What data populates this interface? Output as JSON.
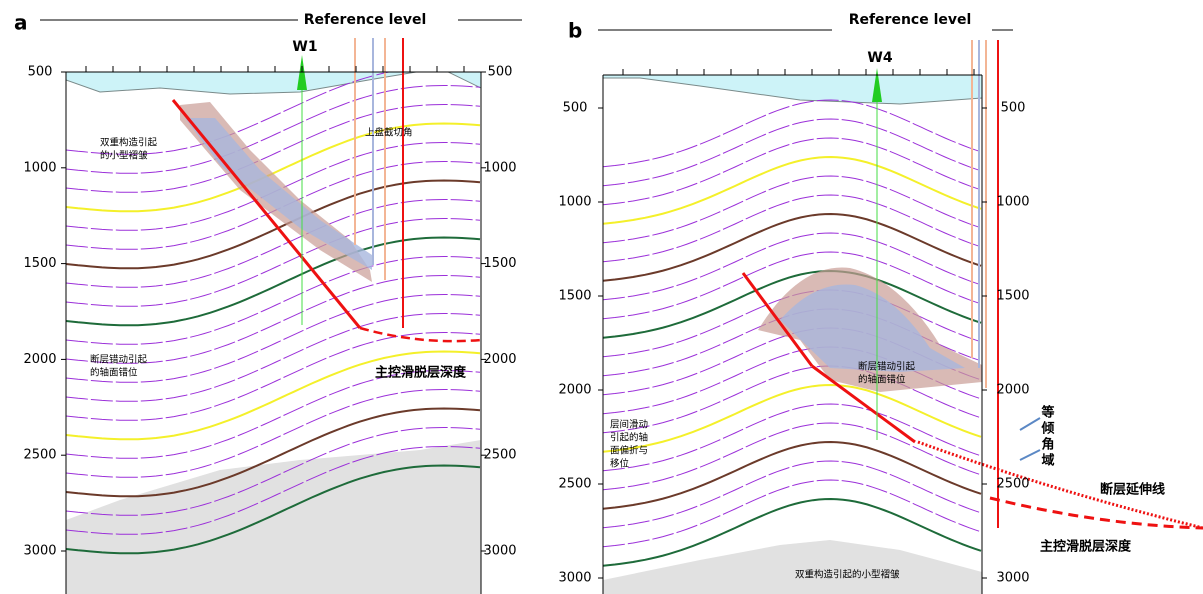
{
  "panels": [
    {
      "label": "a",
      "reference": "Reference level",
      "well": "W1",
      "depth_ticks": [
        500,
        1000,
        1500,
        2000,
        2500,
        3000
      ],
      "notes": [
        [
          "双重构造引起",
          "的小型褶皱"
        ],
        [
          "上盘截切角"
        ],
        [
          "断层错动引起",
          "的轴面错位"
        ]
      ],
      "key_label": "主控滑脱层深度"
    },
    {
      "label": "b",
      "reference": "Reference level",
      "well": "W4",
      "depth_ticks": [
        500,
        1000,
        1500,
        2000,
        2500,
        3000
      ],
      "notes": [
        [
          "断层错动引起",
          "的轴面错位"
        ],
        [
          "层间滑动",
          "引起的轴",
          "面偏折与",
          "移位"
        ],
        [
          "双重构造引起的小型褶皱"
        ]
      ],
      "side_label": [
        "等",
        "倾",
        "角",
        "域"
      ],
      "fault_extension": "断层延伸线",
      "key_label": "主控滑脱层深度"
    }
  ]
}
